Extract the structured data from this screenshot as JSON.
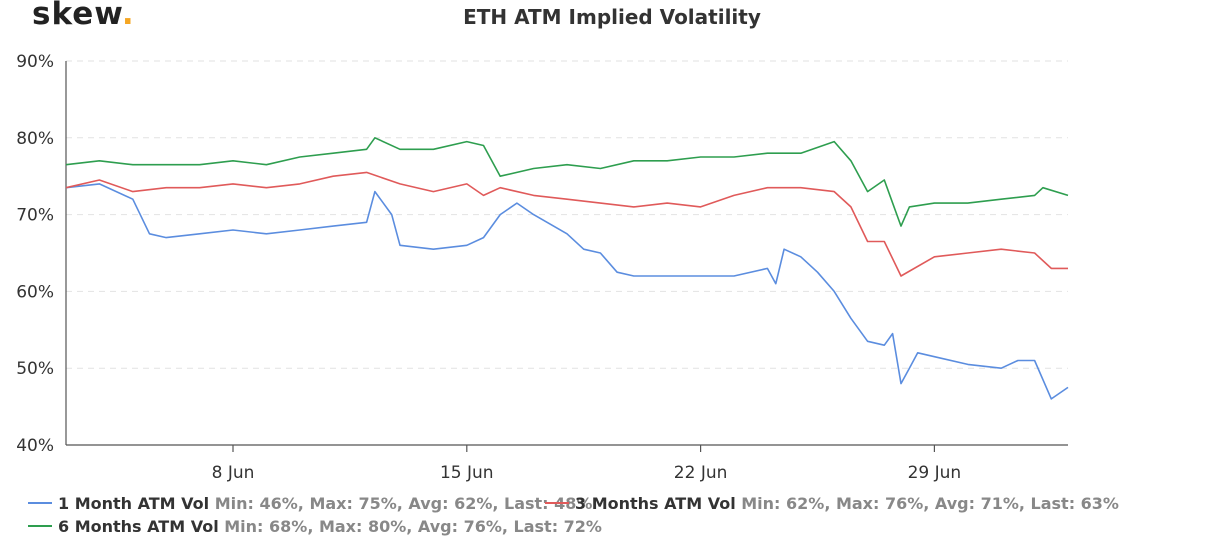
{
  "brand": {
    "logo_text": "skew",
    "logo_dot": ".",
    "dot_color": "#f5a623"
  },
  "chart_data": {
    "type": "line",
    "title": "ETH ATM Implied Volatility",
    "xlabel": "",
    "ylabel": "",
    "ylim": [
      40,
      90
    ],
    "yticks": [
      "40%",
      "50%",
      "60%",
      "70%",
      "80%",
      "90%"
    ],
    "xlim": [
      "2020-06-03",
      "2020-07-03"
    ],
    "xticks": [
      {
        "date": "2020-06-08",
        "label": "8 Jun"
      },
      {
        "date": "2020-06-15",
        "label": "15 Jun"
      },
      {
        "date": "2020-06-22",
        "label": "22 Jun"
      },
      {
        "date": "2020-06-29",
        "label": "29 Jun"
      }
    ],
    "grid": "horizontal dashed",
    "legend": "bottom",
    "series": [
      {
        "name": "1 Month ATM Vol",
        "color": "#5b8ddf",
        "stats": "Min: 46%, Max: 75%, Avg: 62%, Last: 48%",
        "points": [
          [
            "2020-06-03",
            73.5
          ],
          [
            "2020-06-04",
            74
          ],
          [
            "2020-06-05",
            72
          ],
          [
            "2020-06-05 12:00",
            67.5
          ],
          [
            "2020-06-06",
            67
          ],
          [
            "2020-06-07",
            67.5
          ],
          [
            "2020-06-08",
            68
          ],
          [
            "2020-06-09",
            67.5
          ],
          [
            "2020-06-10",
            68
          ],
          [
            "2020-06-11",
            68.5
          ],
          [
            "2020-06-12",
            69
          ],
          [
            "2020-06-12 06:00",
            73
          ],
          [
            "2020-06-12 18:00",
            70
          ],
          [
            "2020-06-13",
            66
          ],
          [
            "2020-06-14",
            65.5
          ],
          [
            "2020-06-15",
            66
          ],
          [
            "2020-06-15 12:00",
            67
          ],
          [
            "2020-06-16",
            70
          ],
          [
            "2020-06-16 12:00",
            71.5
          ],
          [
            "2020-06-17",
            70
          ],
          [
            "2020-06-18",
            67.5
          ],
          [
            "2020-06-18 12:00",
            65.5
          ],
          [
            "2020-06-19",
            65
          ],
          [
            "2020-06-19 12:00",
            62.5
          ],
          [
            "2020-06-20",
            62
          ],
          [
            "2020-06-21",
            62
          ],
          [
            "2020-06-22",
            62
          ],
          [
            "2020-06-23",
            62
          ],
          [
            "2020-06-24",
            63
          ],
          [
            "2020-06-24 06:00",
            61
          ],
          [
            "2020-06-24 12:00",
            65.5
          ],
          [
            "2020-06-25",
            64.5
          ],
          [
            "2020-06-25 12:00",
            62.5
          ],
          [
            "2020-06-26",
            60
          ],
          [
            "2020-06-26 12:00",
            56.5
          ],
          [
            "2020-06-27",
            53.5
          ],
          [
            "2020-06-27 12:00",
            53
          ],
          [
            "2020-06-27 18:00",
            54.5
          ],
          [
            "2020-06-28",
            48
          ],
          [
            "2020-06-28 06:00",
            50
          ],
          [
            "2020-06-28 12:00",
            52
          ],
          [
            "2020-06-29",
            51.5
          ],
          [
            "2020-06-30",
            50.5
          ],
          [
            "2020-07-01",
            50
          ],
          [
            "2020-07-01 12:00",
            51
          ],
          [
            "2020-07-02",
            51
          ],
          [
            "2020-07-02 12:00",
            46
          ],
          [
            "2020-07-03",
            47.5
          ]
        ]
      },
      {
        "name": "3 Months ATM Vol",
        "color": "#e05a5a",
        "stats": "Min: 62%, Max: 76%, Avg: 71%, Last: 63%",
        "points": [
          [
            "2020-06-03",
            73.5
          ],
          [
            "2020-06-04",
            74.5
          ],
          [
            "2020-06-05",
            73
          ],
          [
            "2020-06-06",
            73.5
          ],
          [
            "2020-06-07",
            73.5
          ],
          [
            "2020-06-08",
            74
          ],
          [
            "2020-06-09",
            73.5
          ],
          [
            "2020-06-10",
            74
          ],
          [
            "2020-06-11",
            75
          ],
          [
            "2020-06-12",
            75.5
          ],
          [
            "2020-06-13",
            74
          ],
          [
            "2020-06-14",
            73
          ],
          [
            "2020-06-15",
            74
          ],
          [
            "2020-06-15 12:00",
            72.5
          ],
          [
            "2020-06-16",
            73.5
          ],
          [
            "2020-06-17",
            72.5
          ],
          [
            "2020-06-18",
            72
          ],
          [
            "2020-06-19",
            71.5
          ],
          [
            "2020-06-20",
            71
          ],
          [
            "2020-06-21",
            71.5
          ],
          [
            "2020-06-22",
            71
          ],
          [
            "2020-06-23",
            72.5
          ],
          [
            "2020-06-24",
            73.5
          ],
          [
            "2020-06-25",
            73.5
          ],
          [
            "2020-06-26",
            73
          ],
          [
            "2020-06-26 12:00",
            71
          ],
          [
            "2020-06-27",
            66.5
          ],
          [
            "2020-06-27 12:00",
            66.5
          ],
          [
            "2020-06-28",
            62
          ],
          [
            "2020-06-29",
            64.5
          ],
          [
            "2020-06-30",
            65
          ],
          [
            "2020-07-01",
            65.5
          ],
          [
            "2020-07-02",
            65
          ],
          [
            "2020-07-02 12:00",
            63
          ],
          [
            "2020-07-03",
            63
          ]
        ]
      },
      {
        "name": "6 Months ATM Vol",
        "color": "#2e9e4f",
        "stats": "Min: 68%, Max: 80%, Avg: 76%, Last: 72%",
        "points": [
          [
            "2020-06-03",
            76.5
          ],
          [
            "2020-06-04",
            77
          ],
          [
            "2020-06-05",
            76.5
          ],
          [
            "2020-06-06",
            76.5
          ],
          [
            "2020-06-07",
            76.5
          ],
          [
            "2020-06-08",
            77
          ],
          [
            "2020-06-09",
            76.5
          ],
          [
            "2020-06-10",
            77.5
          ],
          [
            "2020-06-11",
            78
          ],
          [
            "2020-06-12",
            78.5
          ],
          [
            "2020-06-12 06:00",
            80
          ],
          [
            "2020-06-13",
            78.5
          ],
          [
            "2020-06-14",
            78.5
          ],
          [
            "2020-06-15",
            79.5
          ],
          [
            "2020-06-15 12:00",
            79
          ],
          [
            "2020-06-16",
            75
          ],
          [
            "2020-06-17",
            76
          ],
          [
            "2020-06-18",
            76.5
          ],
          [
            "2020-06-19",
            76
          ],
          [
            "2020-06-20",
            77
          ],
          [
            "2020-06-21",
            77
          ],
          [
            "2020-06-22",
            77.5
          ],
          [
            "2020-06-23",
            77.5
          ],
          [
            "2020-06-24",
            78
          ],
          [
            "2020-06-25",
            78
          ],
          [
            "2020-06-26",
            79.5
          ],
          [
            "2020-06-26 12:00",
            77
          ],
          [
            "2020-06-27",
            73
          ],
          [
            "2020-06-27 12:00",
            74.5
          ],
          [
            "2020-06-28",
            68.5
          ],
          [
            "2020-06-28 06:00",
            71
          ],
          [
            "2020-06-29",
            71.5
          ],
          [
            "2020-06-30",
            71.5
          ],
          [
            "2020-07-01",
            72
          ],
          [
            "2020-07-02",
            72.5
          ],
          [
            "2020-07-02 06:00",
            73.5
          ],
          [
            "2020-07-03",
            72.5
          ]
        ]
      }
    ]
  }
}
